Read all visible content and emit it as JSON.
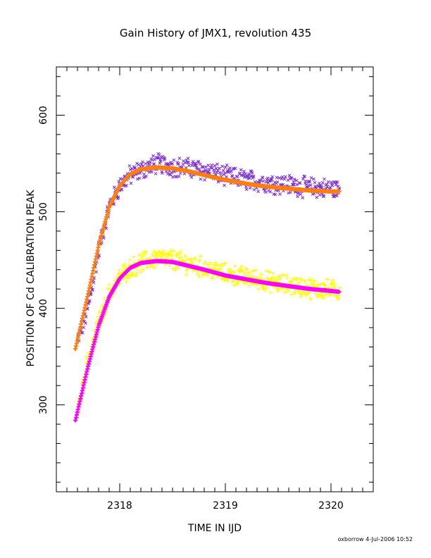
{
  "chart_data": {
    "type": "scatter",
    "title": "Gain History of JMX1, revolution 435",
    "xlabel": "TIME IN IJD",
    "ylabel": "POSITION OF Cd CALIBRATION PEAK",
    "xlim": [
      2317.4,
      2320.4
    ],
    "ylim": [
      210,
      650
    ],
    "x_ticks": [
      2318,
      2319,
      2320
    ],
    "y_ticks": [
      300,
      400,
      500,
      600
    ],
    "grid": false,
    "footer": "oxborrow  4-Jul-2006 10:52",
    "series": [
      {
        "marker": "x",
        "color": "#7a2bd6",
        "style": "points",
        "x_start": 2317.6,
        "x_end": 2320.08,
        "values_x": [
          2317.6,
          2317.7,
          2317.8,
          2317.9,
          2318.0,
          2318.1,
          2318.2,
          2318.35,
          2318.5,
          2318.65,
          2318.8,
          2319.0,
          2319.2,
          2319.4,
          2319.6,
          2319.8,
          2320.0,
          2320.08
        ],
        "values_y": [
          365,
          400,
          460,
          505,
          527,
          538,
          543,
          550,
          547,
          545,
          543,
          537,
          533,
          530,
          528,
          525,
          524,
          523
        ]
      },
      {
        "marker": "curve",
        "color": "#ff7f0e",
        "style": "fit",
        "values_x": [
          2317.58,
          2317.7,
          2317.8,
          2317.9,
          2318.0,
          2318.1,
          2318.2,
          2318.35,
          2318.5,
          2318.65,
          2318.8,
          2319.0,
          2319.2,
          2319.4,
          2319.6,
          2319.8,
          2320.0,
          2320.08
        ],
        "values_y": [
          358,
          415,
          465,
          505,
          527,
          539,
          544,
          546,
          545,
          542,
          538,
          533,
          529,
          526,
          524,
          522,
          521,
          521
        ]
      },
      {
        "marker": "+",
        "color": "#ffff00",
        "style": "points",
        "values_x": [
          2317.6,
          2317.7,
          2317.8,
          2317.9,
          2318.0,
          2318.1,
          2318.2,
          2318.35,
          2318.5,
          2318.65,
          2318.8,
          2319.0,
          2319.2,
          2319.4,
          2319.6,
          2319.8,
          2320.0,
          2320.08
        ],
        "values_y": [
          300,
          345,
          385,
          415,
          432,
          442,
          447,
          452,
          450,
          446,
          442,
          436,
          432,
          428,
          424,
          421,
          419,
          418
        ]
      },
      {
        "marker": "curve",
        "color": "#ff00ff",
        "style": "fit",
        "values_x": [
          2317.58,
          2317.7,
          2317.8,
          2317.9,
          2318.0,
          2318.1,
          2318.2,
          2318.35,
          2318.5,
          2318.65,
          2318.8,
          2319.0,
          2319.2,
          2319.4,
          2319.6,
          2319.8,
          2320.0,
          2320.08
        ],
        "values_y": [
          284,
          340,
          382,
          412,
          431,
          442,
          447,
          449,
          448,
          444,
          440,
          434,
          430,
          426,
          423,
          420,
          418,
          417
        ]
      }
    ]
  }
}
